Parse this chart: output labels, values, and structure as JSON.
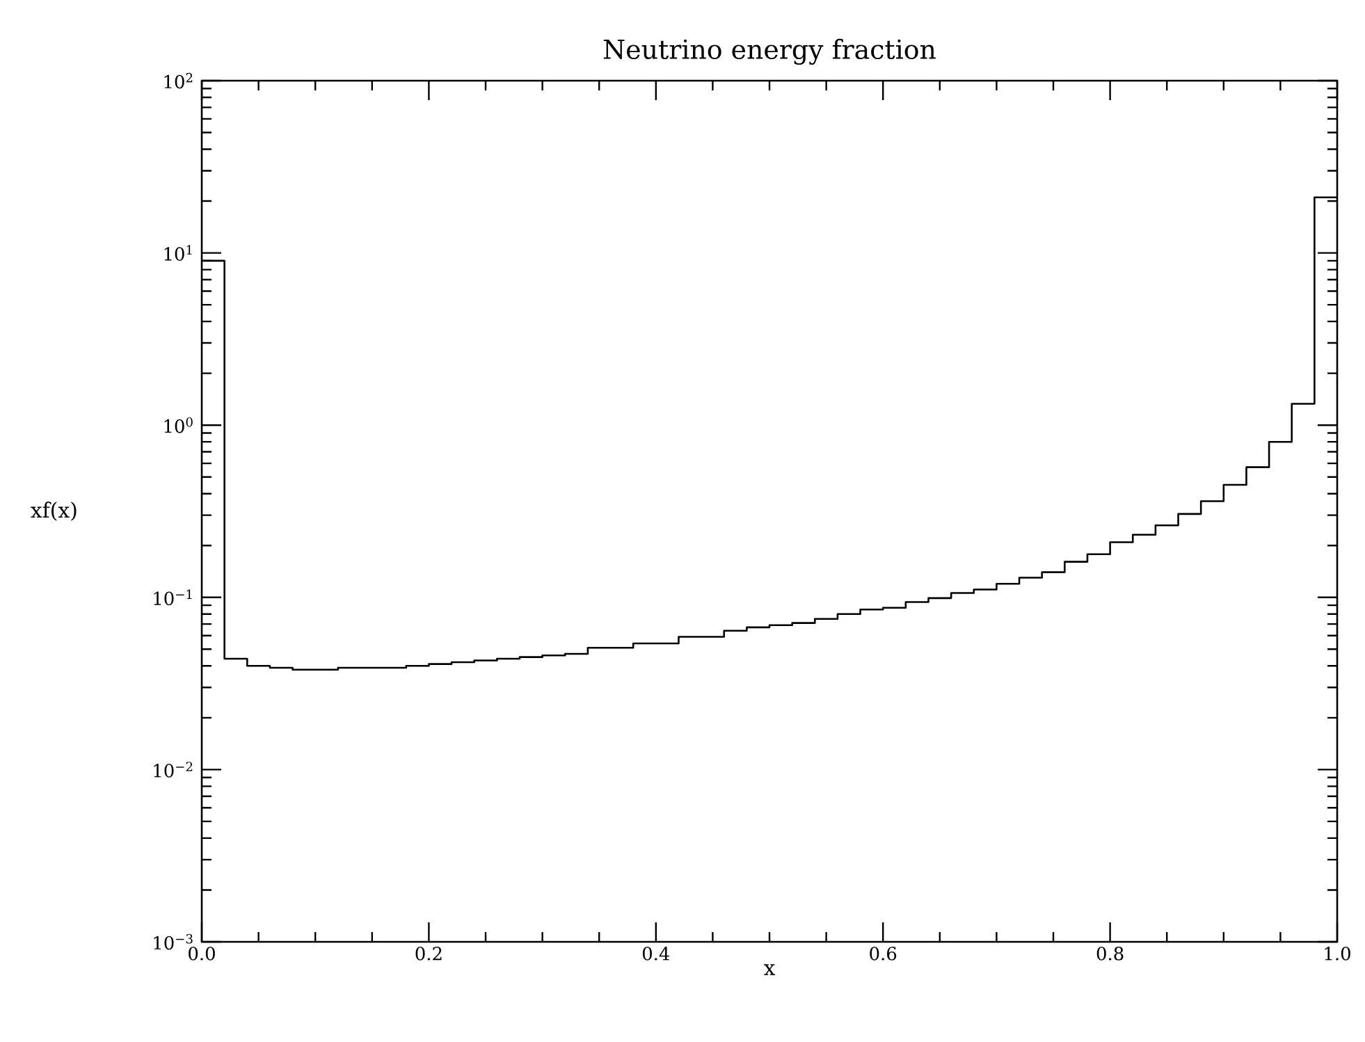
{
  "chart_data": {
    "type": "histogram",
    "title": "Neutrino energy fraction",
    "xlabel": "x",
    "ylabel": "xf(x)",
    "bins": [
      0,
      0.02,
      0.04,
      0.06,
      0.08,
      0.1,
      0.12,
      0.14,
      0.16,
      0.18,
      0.2,
      0.22,
      0.24,
      0.26,
      0.28,
      0.3,
      0.32,
      0.34,
      0.36,
      0.38,
      0.4,
      0.42,
      0.44,
      0.46,
      0.48,
      0.5,
      0.52,
      0.54,
      0.56,
      0.58,
      0.6,
      0.62,
      0.64,
      0.66,
      0.68,
      0.7,
      0.72,
      0.74,
      0.76,
      0.78,
      0.8,
      0.82,
      0.84,
      0.86,
      0.88,
      0.9,
      0.92,
      0.94,
      0.96,
      0.98,
      1.0
    ],
    "values": [
      9,
      0.044,
      0.04,
      0.039,
      0.038,
      0.038,
      0.039,
      0.039,
      0.039,
      0.04,
      0.041,
      0.042,
      0.043,
      0.044,
      0.045,
      0.046,
      0.047,
      0.051,
      0.051,
      0.054,
      0.054,
      0.059,
      0.059,
      0.064,
      0.067,
      0.069,
      0.071,
      0.075,
      0.08,
      0.085,
      0.087,
      0.094,
      0.099,
      0.106,
      0.111,
      0.12,
      0.13,
      0.14,
      0.161,
      0.178,
      0.209,
      0.231,
      0.262,
      0.305,
      0.362,
      0.45,
      0.57,
      0.8,
      1.33,
      21
    ],
    "color": "#000000",
    "log": "y",
    "grid": false,
    "xlim": [
      0,
      1
    ],
    "ylim": [
      0.001,
      100
    ],
    "xticks": [
      {
        "value": 0,
        "label": "0.0"
      },
      {
        "value": 0.2,
        "label": "0.2"
      },
      {
        "value": 0.4,
        "label": "0.4"
      },
      {
        "value": 0.6,
        "label": "0.6"
      },
      {
        "value": 0.8,
        "label": "0.8"
      },
      {
        "value": 1,
        "label": "1.0"
      }
    ],
    "yticks": [
      {
        "value": 0.001,
        "label": "10$^{−3}$"
      },
      {
        "value": 0.01,
        "label": "10$^{−2}$"
      },
      {
        "value": 0.1,
        "label": "10$^{−1}$"
      },
      {
        "value": 1,
        "label": "10$^{0}$"
      },
      {
        "value": 10,
        "label": "10$^{1}$"
      },
      {
        "value": 100,
        "label": "10$^{2}$"
      }
    ]
  }
}
